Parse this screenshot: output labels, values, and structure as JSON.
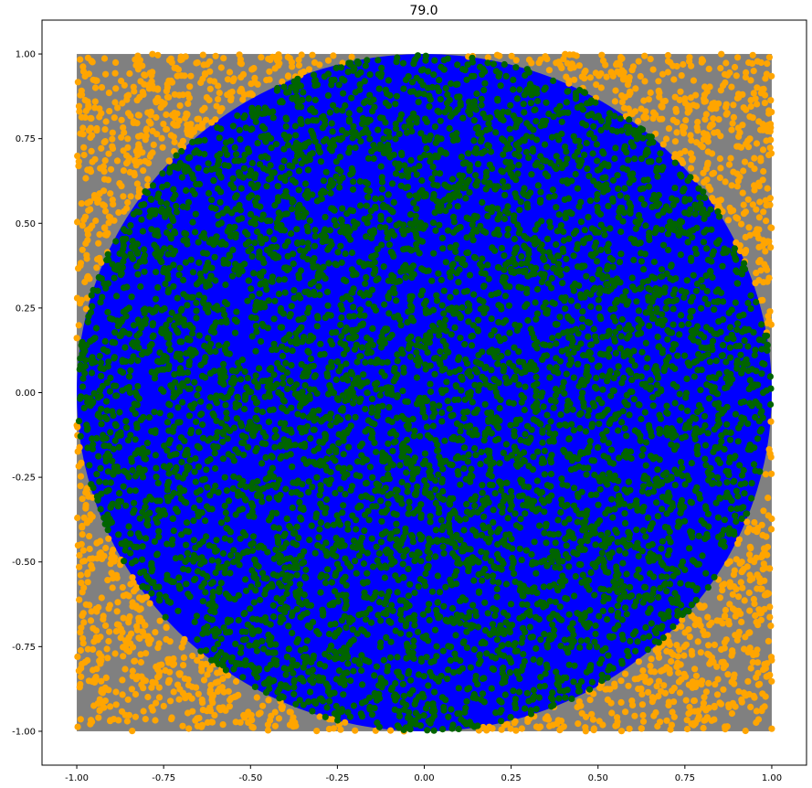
{
  "chart_data": {
    "type": "scatter",
    "title": "79.0",
    "xlabel": "",
    "ylabel": "",
    "xlim": [
      -1.1,
      1.1
    ],
    "ylim": [
      -1.1,
      1.1
    ],
    "grid": false,
    "legend": "none",
    "x_ticks": [
      "-1.00",
      "-0.75",
      "-0.50",
      "-0.25",
      "0.00",
      "0.25",
      "0.50",
      "0.75",
      "1.00"
    ],
    "y_ticks": [
      "-1.00",
      "-0.75",
      "-0.50",
      "-0.25",
      "0.00",
      "0.25",
      "0.50",
      "0.75",
      "1.00"
    ],
    "background_square": {
      "x": [
        -1,
        1
      ],
      "y": [
        -1,
        1
      ],
      "color": "#808080"
    },
    "circle": {
      "center": [
        0,
        0
      ],
      "radius": 1,
      "color": "#0000ff"
    },
    "series": [
      {
        "color": "#ffa500",
        "region": "outside-circle",
        "approx_count": 1700
      },
      {
        "color": "#006400",
        "region": "inside-circle",
        "approx_count": 6300
      }
    ]
  }
}
